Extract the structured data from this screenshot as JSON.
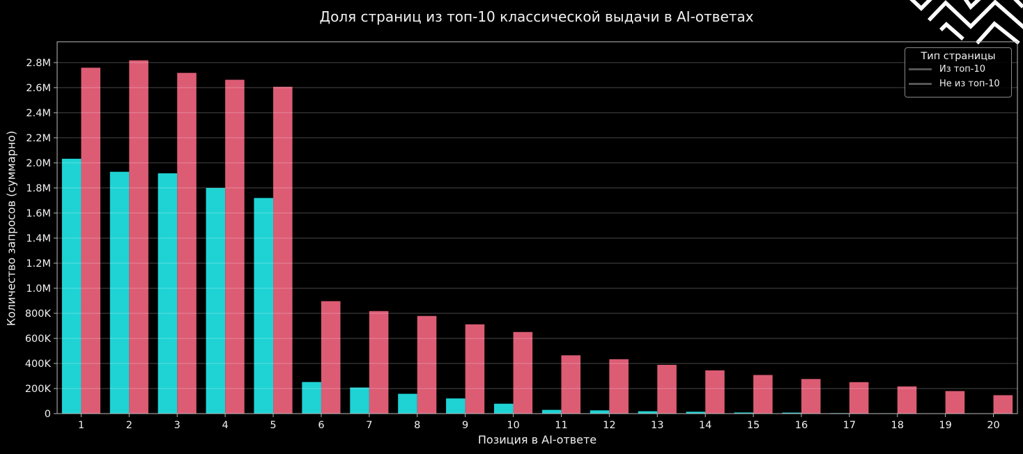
{
  "chart_data": {
    "type": "bar",
    "title": "Доля страниц из топ-10 классической выдачи в AI-ответах",
    "xlabel": "Позиция в AI-ответе",
    "ylabel": "Количество запросов (суммарно)",
    "categories": [
      "1",
      "2",
      "3",
      "4",
      "5",
      "6",
      "7",
      "8",
      "9",
      "10",
      "11",
      "12",
      "13",
      "14",
      "15",
      "16",
      "17",
      "18",
      "19",
      "20"
    ],
    "series": [
      {
        "name": "Из топ-10",
        "color": "#1fd3d4",
        "values": [
          2033000,
          1929000,
          1917000,
          1800000,
          1720000,
          252000,
          208000,
          158000,
          121000,
          79000,
          30000,
          26000,
          19000,
          15000,
          9000,
          8000,
          4000,
          3000,
          1000,
          0
        ]
      },
      {
        "name": "Не из топ-10",
        "color": "#dc5c74",
        "values": [
          2759000,
          2818000,
          2718000,
          2663000,
          2607000,
          897000,
          818000,
          779000,
          712000,
          651000,
          465000,
          434000,
          389000,
          345000,
          308000,
          276000,
          251000,
          217000,
          180000,
          147000
        ]
      }
    ],
    "ylim": [
      0,
      2966000
    ],
    "yticks": [
      0,
      200000,
      400000,
      600000,
      800000,
      1000000,
      1200000,
      1400000,
      1600000,
      1800000,
      2000000,
      2200000,
      2400000,
      2600000,
      2800000
    ],
    "ytick_labels": [
      "0",
      "200K",
      "400K",
      "600K",
      "800K",
      "1.0M",
      "1.2M",
      "1.4M",
      "1.6M",
      "1.8M",
      "2.0M",
      "2.2M",
      "2.4M",
      "2.6M",
      "2.8M"
    ],
    "grid": true,
    "legend": {
      "title": "Тип страницы",
      "position": "upper right",
      "entries": [
        "Из топ-10",
        "Не из топ-10"
      ]
    }
  },
  "theme": {
    "background": "#000000",
    "grid_color": "#ffffff",
    "spine_color": "#bbbbbb",
    "legend_line_color": "#555555"
  },
  "decoration": {
    "icon": "zigzag-pattern-icon"
  }
}
